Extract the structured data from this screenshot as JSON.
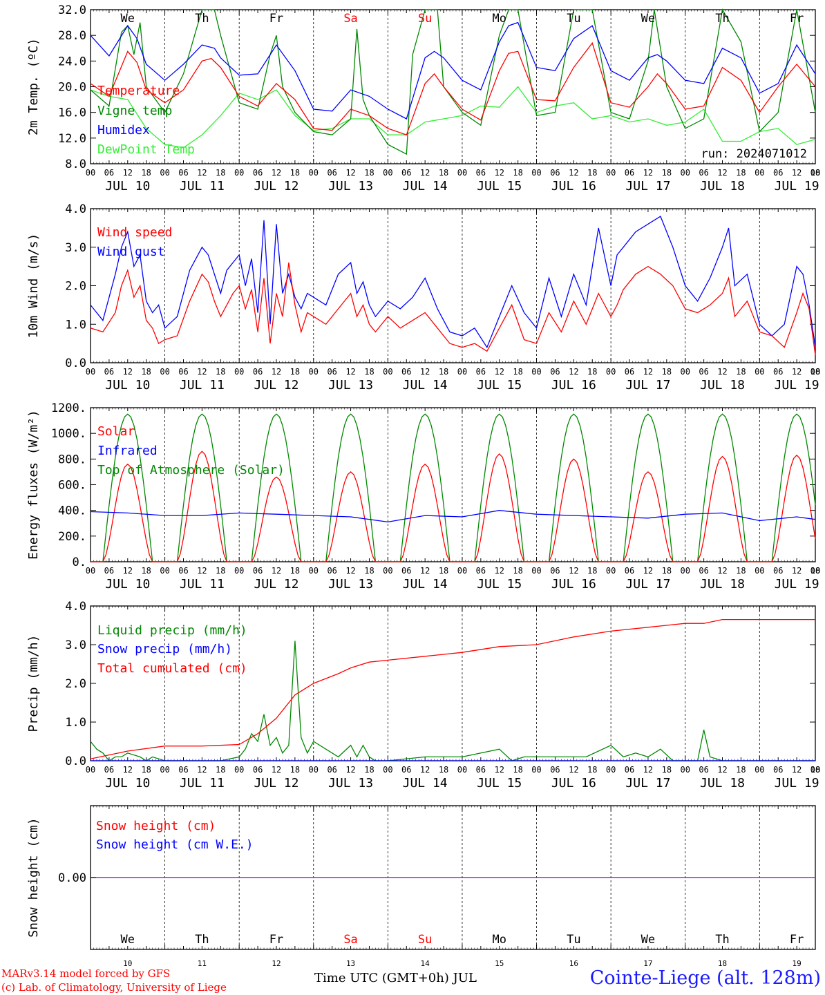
{
  "chart_data": [
    {
      "type": "line",
      "ylabel": "2m Temp. (ºC)",
      "ylim": [
        8,
        32
      ],
      "yticks": [
        "8.0",
        "12.0",
        "16.0",
        "20.0",
        "24.0",
        "28.0",
        "32.0"
      ],
      "run_label": "run: 2024071012",
      "x_unit": "hours since JUL 10 00 UTC",
      "colors": {
        "temperature": "#ff0000",
        "vigne": "#008800",
        "humidex": "#0000ff",
        "dewpoint": "#33ee33"
      },
      "series": [
        {
          "name": "Temperature",
          "color": "#ff0000",
          "x": [
            0,
            6,
            12,
            15,
            18,
            24,
            30,
            36,
            39,
            42,
            48,
            54,
            60,
            66,
            72,
            78,
            84,
            90,
            96,
            102,
            108,
            111,
            114,
            120,
            126,
            132,
            135,
            138,
            144,
            150,
            156,
            162,
            168,
            174,
            180,
            183,
            186,
            192,
            198,
            204,
            210,
            216,
            222,
            228,
            234
          ],
          "y": [
            20.5,
            18.5,
            25.5,
            23.8,
            19.5,
            17.5,
            19.5,
            24.0,
            24.4,
            23.0,
            18.5,
            17.0,
            20.5,
            18.0,
            13.5,
            13.2,
            16.5,
            15.5,
            13.5,
            12.5,
            20.5,
            22.0,
            20.0,
            16.5,
            14.8,
            22.5,
            25.2,
            25.5,
            18.0,
            17.8,
            23.0,
            26.8,
            17.5,
            16.8,
            20.0,
            22.0,
            20.5,
            16.5,
            17.0,
            23.0,
            21.0,
            16.0,
            20.0,
            23.5,
            20.0
          ]
        },
        {
          "name": "Vigne temp",
          "color": "#008800",
          "x": [
            0,
            6,
            10,
            12,
            14,
            16,
            18,
            24,
            30,
            36,
            40,
            42,
            48,
            54,
            58,
            60,
            62,
            66,
            72,
            78,
            84,
            86,
            88,
            90,
            96,
            102,
            104,
            108,
            112,
            114,
            120,
            126,
            132,
            135,
            138,
            144,
            150,
            156,
            162,
            168,
            174,
            180,
            182,
            186,
            192,
            198,
            204,
            210,
            216,
            222,
            228,
            234
          ],
          "y": [
            19.5,
            17.0,
            28.5,
            29.5,
            25.0,
            30.0,
            20.0,
            16.0,
            22.0,
            33.0,
            33.0,
            28.0,
            17.5,
            16.5,
            25.0,
            28.0,
            20.0,
            16.0,
            13.0,
            12.5,
            15.0,
            29.0,
            18.0,
            15.5,
            11.0,
            9.5,
            25.0,
            33.0,
            33.0,
            20.0,
            16.0,
            14.0,
            28.0,
            33.0,
            32.0,
            15.5,
            16.0,
            33.0,
            33.0,
            16.0,
            15.0,
            24.0,
            33.0,
            20.0,
            13.5,
            15.0,
            33.0,
            27.0,
            13.0,
            16.0,
            33.0,
            16.0
          ]
        },
        {
          "name": "Humidex",
          "color": "#0000ff",
          "x": [
            0,
            6,
            12,
            15,
            18,
            24,
            30,
            36,
            40,
            42,
            48,
            54,
            60,
            66,
            72,
            78,
            84,
            90,
            96,
            102,
            108,
            111,
            114,
            120,
            126,
            132,
            135,
            138,
            144,
            150,
            156,
            162,
            168,
            174,
            180,
            183,
            186,
            192,
            198,
            204,
            210,
            216,
            222,
            228,
            234
          ],
          "y": [
            28.0,
            24.8,
            29.5,
            27.5,
            23.5,
            21.0,
            23.5,
            26.5,
            26.0,
            24.5,
            21.8,
            22.0,
            26.5,
            22.5,
            16.5,
            16.2,
            19.5,
            18.5,
            16.5,
            15.0,
            24.5,
            25.5,
            24.5,
            21.0,
            19.5,
            27.0,
            29.5,
            30.0,
            23.0,
            22.5,
            27.5,
            29.5,
            22.5,
            21.0,
            24.5,
            25.0,
            24.0,
            21.0,
            20.5,
            26.0,
            24.5,
            19.0,
            20.5,
            26.5,
            22.0
          ]
        },
        {
          "name": "DewPoint Temp",
          "color": "#33ee33",
          "x": [
            0,
            6,
            12,
            18,
            24,
            30,
            36,
            42,
            48,
            54,
            60,
            66,
            72,
            78,
            84,
            90,
            96,
            102,
            108,
            114,
            120,
            126,
            132,
            138,
            144,
            150,
            156,
            162,
            168,
            174,
            180,
            186,
            192,
            198,
            204,
            210,
            216,
            222,
            228,
            234
          ],
          "y": [
            19.5,
            18.5,
            18.0,
            13.5,
            11.0,
            10.5,
            12.5,
            15.5,
            19.0,
            18.0,
            19.5,
            15.5,
            13.2,
            13.5,
            15.0,
            15.0,
            12.5,
            12.5,
            14.5,
            15.0,
            15.5,
            17.0,
            16.8,
            20.0,
            16.0,
            17.0,
            17.5,
            15.0,
            15.5,
            14.5,
            15.0,
            14.0,
            14.5,
            16.5,
            11.5,
            11.5,
            13.0,
            13.5,
            11.0,
            11.8
          ]
        }
      ]
    },
    {
      "type": "line",
      "ylabel": "10m Wind (m/s)",
      "ylim": [
        0,
        4
      ],
      "yticks": [
        "0.0",
        "1.0",
        "2.0",
        "3.0",
        "4.0"
      ],
      "series": [
        {
          "name": "Wind speed",
          "color": "#ff0000",
          "x": [
            0,
            4,
            8,
            10,
            12,
            14,
            16,
            18,
            20,
            22,
            24,
            28,
            32,
            36,
            38,
            40,
            42,
            44,
            46,
            48,
            50,
            52,
            54,
            56,
            58,
            60,
            62,
            64,
            66,
            68,
            70,
            72,
            76,
            80,
            84,
            86,
            88,
            90,
            92,
            96,
            100,
            104,
            108,
            112,
            116,
            120,
            124,
            128,
            132,
            136,
            140,
            144,
            148,
            152,
            156,
            160,
            164,
            168,
            170,
            172,
            176,
            180,
            184,
            188,
            192,
            196,
            200,
            204,
            206,
            208,
            212,
            216,
            220,
            224,
            228,
            230,
            232,
            234
          ],
          "y": [
            0.9,
            0.8,
            1.3,
            2.0,
            2.4,
            1.7,
            2.0,
            1.1,
            0.9,
            0.5,
            0.6,
            0.7,
            1.6,
            2.3,
            2.1,
            1.6,
            1.2,
            1.5,
            1.8,
            2.0,
            1.4,
            1.9,
            0.8,
            2.2,
            0.5,
            1.8,
            1.2,
            2.6,
            1.5,
            0.8,
            1.3,
            1.2,
            1.0,
            1.4,
            1.8,
            1.2,
            1.5,
            1.0,
            0.8,
            1.2,
            0.9,
            1.1,
            1.3,
            0.9,
            0.5,
            0.4,
            0.5,
            0.3,
            0.9,
            1.5,
            0.6,
            0.5,
            1.3,
            0.8,
            1.6,
            1.0,
            1.8,
            1.2,
            1.5,
            1.9,
            2.3,
            2.5,
            2.3,
            2.0,
            1.4,
            1.3,
            1.5,
            1.8,
            2.2,
            1.2,
            1.6,
            0.8,
            0.7,
            0.4,
            1.3,
            1.8,
            1.4,
            0.2
          ]
        },
        {
          "name": "Wind gust",
          "color": "#0000ff",
          "x": [
            0,
            4,
            8,
            10,
            12,
            14,
            16,
            18,
            20,
            22,
            24,
            28,
            32,
            36,
            38,
            40,
            42,
            44,
            46,
            48,
            50,
            52,
            54,
            56,
            58,
            60,
            62,
            64,
            66,
            68,
            70,
            72,
            76,
            80,
            84,
            86,
            88,
            90,
            92,
            96,
            100,
            104,
            108,
            112,
            116,
            120,
            124,
            128,
            132,
            136,
            140,
            144,
            148,
            152,
            156,
            160,
            164,
            168,
            170,
            172,
            176,
            180,
            184,
            188,
            192,
            196,
            200,
            204,
            206,
            208,
            212,
            216,
            220,
            224,
            228,
            230,
            232,
            234
          ],
          "y": [
            1.5,
            1.1,
            2.3,
            3.0,
            3.4,
            2.5,
            2.8,
            1.6,
            1.3,
            1.5,
            0.9,
            1.2,
            2.4,
            3.0,
            2.8,
            2.3,
            1.8,
            2.4,
            2.6,
            2.8,
            2.0,
            2.7,
            1.3,
            3.7,
            1.0,
            3.6,
            1.8,
            2.3,
            1.7,
            1.4,
            1.8,
            1.7,
            1.5,
            2.3,
            2.6,
            1.8,
            2.1,
            1.5,
            1.2,
            1.6,
            1.4,
            1.7,
            2.2,
            1.4,
            0.8,
            0.7,
            0.9,
            0.4,
            1.2,
            2.0,
            1.3,
            0.9,
            2.2,
            1.2,
            2.3,
            1.5,
            3.5,
            2.0,
            2.8,
            3.0,
            3.4,
            3.6,
            3.8,
            3.0,
            2.0,
            1.6,
            2.2,
            3.0,
            3.5,
            2.0,
            2.3,
            1.0,
            0.7,
            1.0,
            2.5,
            2.3,
            1.5,
            0.4
          ]
        }
      ]
    },
    {
      "type": "line",
      "ylabel": "Energy fluxes (W/m²)",
      "ylim": [
        0,
        1200
      ],
      "yticks": [
        "0.",
        "200.",
        "400.",
        "600.",
        "800.",
        "1000.",
        "1200."
      ],
      "series": [
        {
          "name": "Solar",
          "color": "#ff0000",
          "peaks": [
            760,
            860,
            660,
            700,
            760,
            840,
            800,
            700,
            820,
            830
          ]
        },
        {
          "name": "Infrared",
          "color": "#0000ff",
          "x": [
            0,
            12,
            24,
            36,
            48,
            60,
            72,
            84,
            96,
            108,
            120,
            132,
            144,
            156,
            168,
            180,
            192,
            204,
            216,
            228,
            234
          ],
          "y": [
            390,
            380,
            360,
            360,
            380,
            370,
            360,
            350,
            310,
            360,
            350,
            400,
            370,
            360,
            350,
            340,
            370,
            380,
            320,
            350,
            330
          ]
        },
        {
          "name": "Top of Atmosphere (Solar)",
          "color": "#008800",
          "peak": 1150
        }
      ]
    },
    {
      "type": "line",
      "ylabel": "Precip (mm/h)",
      "ylim": [
        0,
        4
      ],
      "yticks": [
        "0.0",
        "1.0",
        "2.0",
        "3.0",
        "4.0"
      ],
      "series": [
        {
          "name": "Liquid precip (mm/h)",
          "color": "#008800",
          "x": [
            0,
            2,
            4,
            6,
            8,
            10,
            12,
            16,
            18,
            20,
            24,
            30,
            36,
            42,
            48,
            50,
            52,
            54,
            56,
            58,
            60,
            62,
            64,
            66,
            68,
            70,
            72,
            76,
            80,
            84,
            86,
            88,
            90,
            92,
            96,
            108,
            120,
            132,
            136,
            140,
            144,
            156,
            160,
            168,
            172,
            176,
            180,
            184,
            188,
            192,
            196,
            198,
            200,
            204,
            210,
            216,
            234
          ],
          "y": [
            0.5,
            0.3,
            0.2,
            0.0,
            0.1,
            0.1,
            0.2,
            0.1,
            0.0,
            0.1,
            0.0,
            0.0,
            0.0,
            0.0,
            0.1,
            0.3,
            0.7,
            0.5,
            1.2,
            0.4,
            0.6,
            0.2,
            0.4,
            3.1,
            0.6,
            0.2,
            0.5,
            0.3,
            0.1,
            0.4,
            0.1,
            0.4,
            0.1,
            0.0,
            0.0,
            0.1,
            0.1,
            0.3,
            0.0,
            0.1,
            0.1,
            0.1,
            0.1,
            0.4,
            0.1,
            0.2,
            0.1,
            0.3,
            0.0,
            0.0,
            0.0,
            0.8,
            0.1,
            0.0,
            0.0,
            0.0,
            0.0
          ]
        },
        {
          "name": "Snow precip (mm/h)",
          "color": "#0000ff",
          "x": [
            0,
            234
          ],
          "y": [
            0,
            0
          ]
        },
        {
          "name": "Total cumulated (cm)",
          "color": "#ff0000",
          "x": [
            0,
            12,
            24,
            36,
            48,
            54,
            60,
            66,
            72,
            80,
            84,
            90,
            96,
            108,
            120,
            132,
            144,
            156,
            168,
            180,
            186,
            192,
            198,
            204,
            216,
            234
          ],
          "y": [
            0.05,
            0.25,
            0.38,
            0.38,
            0.42,
            0.7,
            1.1,
            1.7,
            2.0,
            2.25,
            2.4,
            2.55,
            2.6,
            2.7,
            2.8,
            2.95,
            3.0,
            3.2,
            3.35,
            3.45,
            3.5,
            3.55,
            3.55,
            3.65,
            3.65,
            3.65
          ]
        }
      ]
    },
    {
      "type": "line",
      "ylabel": "Snow height (cm)",
      "ytick": "0.00",
      "series": [
        {
          "name": "Snow height (cm)",
          "color": "#ff0000",
          "x": [
            0,
            234
          ],
          "y": [
            0,
            0
          ]
        },
        {
          "name": "Snow height (cm W.E.)",
          "color": "#0000ff",
          "x": [
            0,
            234
          ],
          "y": [
            0,
            0
          ]
        }
      ]
    }
  ],
  "hour_ticks": [
    "00",
    "06",
    "12",
    "18"
  ],
  "dates": [
    "JUL 10",
    "JUL 11",
    "JUL 12",
    "JUL 13",
    "JUL 14",
    "JUL 15",
    "JUL 16",
    "JUL 17",
    "JUL 18",
    "JUL 19"
  ],
  "days": [
    "We",
    "Th",
    "Fr",
    "Sa",
    "Su",
    "Mo",
    "Tu",
    "We",
    "Th",
    "Fr"
  ],
  "weekend_color": "#ff0000",
  "day_numbers": [
    "10",
    "11",
    "12",
    "13",
    "14",
    "15",
    "16",
    "17",
    "18",
    "19"
  ],
  "footer": {
    "model": "MARv3.14 model forced by GFS",
    "lab": "(c) Lab. of Climatology, University of Liege",
    "xtitle": "Time UTC (GMT+0h) JUL",
    "station": "Cointe-Liege (alt. 128m)"
  }
}
